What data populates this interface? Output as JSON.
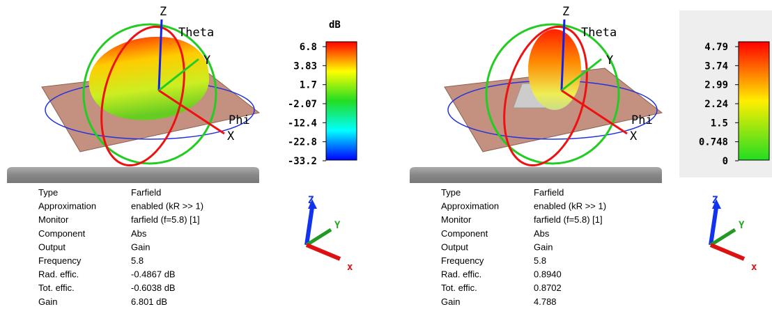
{
  "panels": [
    {
      "axes": {
        "z": "Z",
        "theta": "Theta",
        "y": "Y",
        "phi": "Phi",
        "x": "X"
      },
      "colorbar": {
        "unit": "dB",
        "ticks": [
          "6.8",
          "3.83",
          "1.7",
          "-2.07",
          "-12.4",
          "-22.8",
          "-33.2"
        ]
      },
      "info": [
        [
          "Type",
          "Farfield"
        ],
        [
          "Approximation",
          "enabled (kR >> 1)"
        ],
        [
          "Monitor",
          "farfield (f=5.8) [1]"
        ],
        [
          "Component",
          "Abs"
        ],
        [
          "Output",
          "Gain"
        ],
        [
          "Frequency",
          "5.8"
        ],
        [
          "Rad. effic.",
          "-0.4867 dB"
        ],
        [
          "Tot. effic.",
          "-0.6038 dB"
        ],
        [
          "Gain",
          "6.801 dB"
        ]
      ],
      "triad": {
        "z": "Z",
        "y": "Y",
        "x": "x"
      }
    },
    {
      "axes": {
        "z": "Z",
        "theta": "Theta",
        "y": "Y",
        "phi": "Phi",
        "x": "X"
      },
      "colorbar": {
        "ticks": [
          "4.79",
          "3.74",
          "2.99",
          "2.24",
          "1.5",
          "0.748",
          "0"
        ]
      },
      "info": [
        [
          "Type",
          "Farfield"
        ],
        [
          "Approximation",
          "enabled (kR >> 1)"
        ],
        [
          "Monitor",
          "farfield (f=5.8) [1]"
        ],
        [
          "Component",
          "Abs"
        ],
        [
          "Output",
          "Gain"
        ],
        [
          "Frequency",
          "5.8"
        ],
        [
          "Rad. effic.",
          "0.8940"
        ],
        [
          "Tot. effic.",
          "0.8702"
        ],
        [
          "Gain",
          "4.788"
        ]
      ],
      "triad": {
        "z": "Z",
        "y": "Y",
        "x": "x"
      }
    }
  ]
}
